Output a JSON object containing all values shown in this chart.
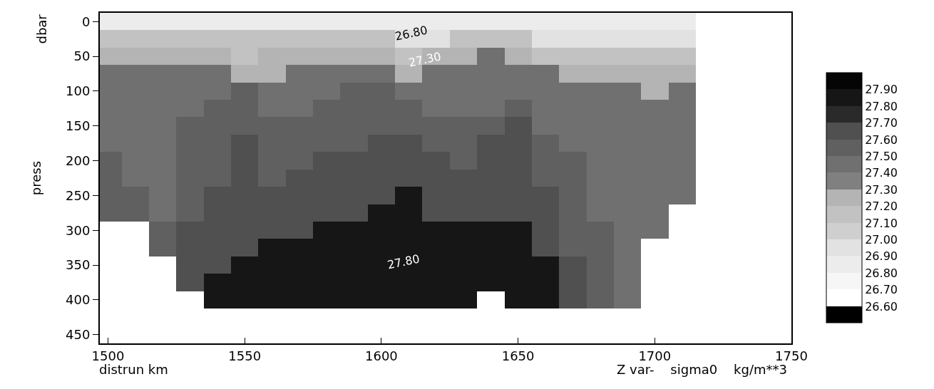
{
  "chart_data": {
    "type": "heatmap",
    "xlabel": "distrun km",
    "ylabel": "press",
    "categories": [
      "1500",
      null,
      null,
      null,
      null,
      "1550",
      null,
      null,
      null,
      null,
      "1600",
      null,
      null,
      null,
      null,
      "1650",
      null,
      null,
      null,
      null,
      "1700",
      null,
      null,
      null,
      null,
      "1750"
    ],
    "y_categories": [
      "0",
      null,
      "50",
      null,
      "100",
      null,
      "150",
      null,
      "200",
      null,
      "250",
      null,
      "300",
      null,
      "350",
      null,
      "400"
    ],
    "cells": [
      [
        26.85,
        26.85,
        26.85,
        26.85,
        26.85,
        26.85,
        26.85,
        26.85,
        26.85,
        26.85,
        26.85,
        26.85,
        26.85,
        26.85,
        26.85,
        26.85,
        26.85,
        26.85,
        26.85,
        26.85,
        26.85,
        26.85,
        null,
        null,
        null,
        null
      ],
      [
        27.15,
        27.15,
        27.15,
        27.15,
        27.15,
        27.15,
        27.15,
        27.15,
        27.15,
        27.15,
        27.15,
        26.95,
        26.95,
        27.15,
        27.15,
        27.15,
        26.95,
        26.95,
        26.95,
        26.95,
        26.95,
        26.95,
        null,
        null,
        null,
        null
      ],
      [
        27.25,
        27.25,
        27.25,
        27.25,
        27.25,
        27.15,
        27.25,
        27.25,
        27.25,
        27.25,
        27.25,
        27.15,
        27.25,
        27.25,
        27.45,
        27.25,
        27.15,
        27.15,
        27.15,
        27.15,
        27.15,
        27.15,
        null,
        null,
        null,
        null
      ],
      [
        27.45,
        27.45,
        27.45,
        27.45,
        27.45,
        27.25,
        27.25,
        27.45,
        27.45,
        27.45,
        27.45,
        27.25,
        27.45,
        27.45,
        27.45,
        27.45,
        27.45,
        27.25,
        27.25,
        27.25,
        27.25,
        27.25,
        null,
        null,
        null,
        null
      ],
      [
        27.45,
        27.45,
        27.45,
        27.45,
        27.45,
        27.55,
        27.45,
        27.45,
        27.45,
        27.55,
        27.55,
        27.45,
        27.45,
        27.45,
        27.45,
        27.45,
        27.45,
        27.45,
        27.45,
        27.45,
        27.25,
        27.45,
        null,
        null,
        null,
        null
      ],
      [
        27.45,
        27.45,
        27.45,
        27.45,
        27.55,
        27.55,
        27.45,
        27.45,
        27.55,
        27.55,
        27.55,
        27.55,
        27.45,
        27.45,
        27.45,
        27.55,
        27.45,
        27.45,
        27.45,
        27.45,
        27.45,
        27.45,
        null,
        null,
        null,
        null
      ],
      [
        27.45,
        27.45,
        27.45,
        27.55,
        27.55,
        27.55,
        27.55,
        27.55,
        27.55,
        27.55,
        27.55,
        27.55,
        27.55,
        27.55,
        27.55,
        27.65,
        27.45,
        27.45,
        27.45,
        27.45,
        27.45,
        27.45,
        null,
        null,
        null,
        null
      ],
      [
        27.45,
        27.45,
        27.45,
        27.55,
        27.55,
        27.65,
        27.55,
        27.55,
        27.55,
        27.55,
        27.65,
        27.65,
        27.55,
        27.55,
        27.65,
        27.65,
        27.55,
        27.45,
        27.45,
        27.45,
        27.45,
        27.45,
        null,
        null,
        null,
        null
      ],
      [
        27.55,
        27.45,
        27.45,
        27.55,
        27.55,
        27.65,
        27.55,
        27.55,
        27.65,
        27.65,
        27.65,
        27.65,
        27.65,
        27.55,
        27.65,
        27.65,
        27.55,
        27.55,
        27.45,
        27.45,
        27.45,
        27.45,
        null,
        null,
        null,
        null
      ],
      [
        27.55,
        27.45,
        27.45,
        27.55,
        27.55,
        27.65,
        27.55,
        27.65,
        27.65,
        27.65,
        27.65,
        27.65,
        27.65,
        27.65,
        27.65,
        27.65,
        27.55,
        27.55,
        27.45,
        27.45,
        27.45,
        27.45,
        null,
        null,
        null,
        null
      ],
      [
        27.55,
        27.55,
        27.45,
        27.55,
        27.65,
        27.65,
        27.65,
        27.65,
        27.65,
        27.65,
        27.65,
        27.85,
        27.65,
        27.65,
        27.65,
        27.65,
        27.65,
        27.55,
        27.45,
        27.45,
        27.45,
        27.45,
        null,
        null,
        null,
        null
      ],
      [
        27.55,
        27.55,
        27.45,
        27.55,
        27.65,
        27.65,
        27.65,
        27.65,
        27.65,
        27.65,
        27.85,
        27.85,
        27.65,
        27.65,
        27.65,
        27.65,
        27.65,
        27.55,
        27.45,
        27.45,
        27.45,
        null,
        null,
        null,
        null,
        null
      ],
      [
        null,
        null,
        27.55,
        27.65,
        27.65,
        27.65,
        27.65,
        27.65,
        27.85,
        27.85,
        27.85,
        27.85,
        27.85,
        27.85,
        27.85,
        27.85,
        27.65,
        27.55,
        27.55,
        27.45,
        27.45,
        null,
        null,
        null,
        null,
        null
      ],
      [
        null,
        null,
        27.55,
        27.65,
        27.65,
        27.65,
        27.85,
        27.85,
        27.85,
        27.85,
        27.85,
        27.85,
        27.85,
        27.85,
        27.85,
        27.85,
        27.65,
        27.55,
        27.55,
        27.45,
        null,
        null,
        null,
        null,
        null,
        null
      ],
      [
        null,
        null,
        null,
        27.65,
        27.65,
        27.85,
        27.85,
        27.85,
        27.85,
        27.85,
        27.85,
        27.85,
        27.85,
        27.85,
        27.85,
        27.85,
        27.85,
        27.65,
        27.55,
        27.45,
        null,
        null,
        null,
        null,
        null,
        null
      ],
      [
        null,
        null,
        null,
        27.65,
        27.85,
        27.85,
        27.85,
        27.85,
        27.85,
        27.85,
        27.85,
        27.85,
        27.85,
        27.85,
        27.85,
        27.85,
        27.85,
        27.65,
        27.55,
        27.45,
        null,
        null,
        null,
        null,
        null,
        null
      ],
      [
        null,
        null,
        null,
        null,
        27.85,
        27.85,
        27.85,
        27.85,
        27.85,
        27.85,
        27.85,
        27.85,
        27.85,
        27.85,
        null,
        27.85,
        27.85,
        27.65,
        27.55,
        27.45,
        null,
        null,
        null,
        null,
        null,
        null
      ]
    ],
    "clim": [
      26.5,
      28.0
    ],
    "cticks": [
      {
        "value": 26.6,
        "label": "26.60"
      },
      {
        "value": 26.7,
        "label": "26.70"
      },
      {
        "value": 26.8,
        "label": "26.80"
      },
      {
        "value": 26.9,
        "label": "26.90"
      },
      {
        "value": 27.0,
        "label": "27.00"
      },
      {
        "value": 27.1,
        "label": "27.10"
      },
      {
        "value": 27.2,
        "label": "27.20"
      },
      {
        "value": 27.3,
        "label": "27.30"
      },
      {
        "value": 27.4,
        "label": "27.40"
      },
      {
        "value": 27.5,
        "label": "27.50"
      },
      {
        "value": 27.6,
        "label": "27.60"
      },
      {
        "value": 27.7,
        "label": "27.70"
      },
      {
        "value": 27.8,
        "label": "27.80"
      },
      {
        "value": 27.9,
        "label": "27.90"
      }
    ],
    "annotations": [
      "26.80",
      "27.30",
      "27.80",
      "dbar",
      "Z var-    sigma0    kg/m**3",
      "450"
    ]
  }
}
